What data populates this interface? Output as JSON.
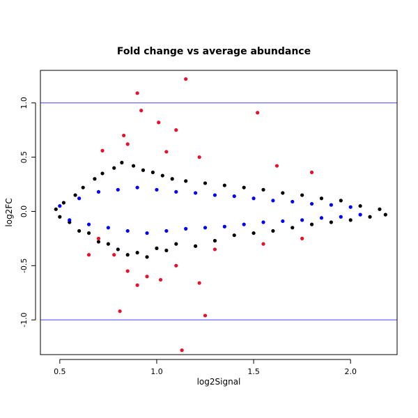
{
  "chart_data": {
    "type": "scatter",
    "title": "Fold change vs average abundance",
    "xlabel": "log2Signal",
    "ylabel": "log2FC",
    "xlim": [
      0.4,
      2.24
    ],
    "ylim": [
      -1.32,
      1.3
    ],
    "x_ticks": [
      0.5,
      1.0,
      1.5,
      2.0
    ],
    "y_ticks": [
      -1.0,
      -0.5,
      0.0,
      0.5,
      1.0
    ],
    "x_tick_labels": [
      "0.5",
      "1.0",
      "1.5",
      "2.0"
    ],
    "y_tick_labels": [
      "-1.0",
      "-0.5",
      "0.0",
      "0.5",
      "1.0"
    ],
    "reference_lines": [
      {
        "y": 1.0,
        "color": "#4040ff"
      },
      {
        "y": -1.0,
        "color": "#4040ff"
      }
    ],
    "grid": false,
    "legend": "none",
    "series": [
      {
        "color": "#000000",
        "points": [
          [
            0.48,
            0.02
          ],
          [
            0.5,
            -0.05
          ],
          [
            0.52,
            0.08
          ],
          [
            0.55,
            -0.1
          ],
          [
            0.58,
            0.15
          ],
          [
            0.6,
            -0.18
          ],
          [
            0.62,
            0.22
          ],
          [
            0.65,
            -0.2
          ],
          [
            0.68,
            0.3
          ],
          [
            0.7,
            -0.28
          ],
          [
            0.72,
            0.35
          ],
          [
            0.75,
            -0.3
          ],
          [
            0.78,
            0.4
          ],
          [
            0.8,
            -0.35
          ],
          [
            0.82,
            0.45
          ],
          [
            0.85,
            -0.4
          ],
          [
            0.88,
            0.42
          ],
          [
            0.9,
            -0.38
          ],
          [
            0.93,
            0.38
          ],
          [
            0.95,
            -0.42
          ],
          [
            0.98,
            0.36
          ],
          [
            1.0,
            -0.34
          ],
          [
            1.03,
            0.33
          ],
          [
            1.05,
            -0.36
          ],
          [
            1.08,
            0.3
          ],
          [
            1.1,
            -0.3
          ],
          [
            1.15,
            0.28
          ],
          [
            1.2,
            -0.32
          ],
          [
            1.25,
            0.26
          ],
          [
            1.3,
            -0.27
          ],
          [
            1.35,
            0.24
          ],
          [
            1.4,
            -0.22
          ],
          [
            1.45,
            0.22
          ],
          [
            1.5,
            -0.2
          ],
          [
            1.55,
            0.2
          ],
          [
            1.6,
            -0.18
          ],
          [
            1.65,
            0.17
          ],
          [
            1.7,
            -0.15
          ],
          [
            1.75,
            0.15
          ],
          [
            1.8,
            -0.12
          ],
          [
            1.85,
            0.12
          ],
          [
            1.9,
            -0.1
          ],
          [
            1.95,
            0.1
          ],
          [
            2.0,
            -0.08
          ],
          [
            2.05,
            0.05
          ],
          [
            2.1,
            -0.05
          ],
          [
            2.15,
            0.02
          ],
          [
            2.18,
            -0.03
          ]
        ]
      },
      {
        "color": "#0000ff",
        "points": [
          [
            0.5,
            0.05
          ],
          [
            0.55,
            -0.08
          ],
          [
            0.6,
            0.12
          ],
          [
            0.65,
            -0.12
          ],
          [
            0.7,
            0.18
          ],
          [
            0.75,
            -0.15
          ],
          [
            0.8,
            0.2
          ],
          [
            0.85,
            -0.18
          ],
          [
            0.9,
            0.22
          ],
          [
            0.95,
            -0.2
          ],
          [
            1.0,
            0.2
          ],
          [
            1.05,
            -0.18
          ],
          [
            1.1,
            0.18
          ],
          [
            1.15,
            -0.16
          ],
          [
            1.2,
            0.17
          ],
          [
            1.25,
            -0.15
          ],
          [
            1.3,
            0.15
          ],
          [
            1.35,
            -0.14
          ],
          [
            1.4,
            0.14
          ],
          [
            1.45,
            -0.12
          ],
          [
            1.5,
            0.12
          ],
          [
            1.55,
            -0.1
          ],
          [
            1.6,
            0.1
          ],
          [
            1.65,
            -0.09
          ],
          [
            1.7,
            0.09
          ],
          [
            1.75,
            -0.08
          ],
          [
            1.8,
            0.07
          ],
          [
            1.85,
            -0.06
          ],
          [
            1.9,
            0.06
          ],
          [
            1.95,
            -0.05
          ],
          [
            2.0,
            0.04
          ],
          [
            2.05,
            -0.03
          ]
        ]
      },
      {
        "color": "#e8102a",
        "points": [
          [
            0.9,
            1.09
          ],
          [
            1.15,
            1.22
          ],
          [
            0.92,
            0.93
          ],
          [
            1.01,
            0.82
          ],
          [
            1.52,
            0.91
          ],
          [
            0.83,
            0.7
          ],
          [
            1.1,
            0.75
          ],
          [
            0.72,
            0.56
          ],
          [
            0.85,
            0.62
          ],
          [
            1.05,
            0.55
          ],
          [
            1.22,
            0.5
          ],
          [
            1.8,
            0.36
          ],
          [
            1.62,
            0.42
          ],
          [
            0.7,
            -0.25
          ],
          [
            0.78,
            -0.4
          ],
          [
            0.85,
            -0.55
          ],
          [
            0.9,
            -0.68
          ],
          [
            0.95,
            -0.6
          ],
          [
            1.02,
            -0.63
          ],
          [
            1.1,
            -0.5
          ],
          [
            1.22,
            -0.66
          ],
          [
            0.81,
            -0.92
          ],
          [
            1.25,
            -0.96
          ],
          [
            1.13,
            -1.28
          ],
          [
            1.3,
            -0.35
          ],
          [
            1.55,
            -0.3
          ],
          [
            1.75,
            -0.25
          ],
          [
            0.65,
            -0.4
          ]
        ]
      }
    ]
  }
}
